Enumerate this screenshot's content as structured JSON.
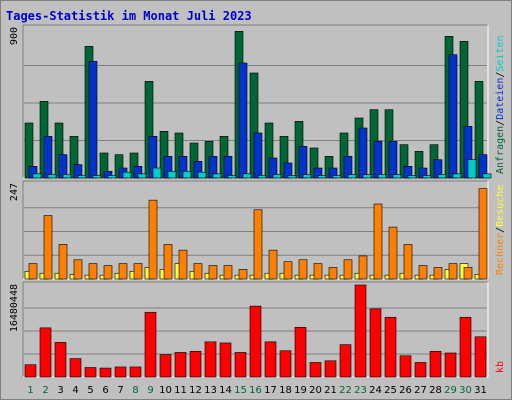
{
  "chart_data": {
    "type": "bar",
    "title": "Tages-Statistik im Monat Juli 2023",
    "categories": [
      "1",
      "2",
      "3",
      "4",
      "5",
      "6",
      "7",
      "8",
      "9",
      "10",
      "11",
      "12",
      "13",
      "14",
      "15",
      "16",
      "17",
      "18",
      "19",
      "20",
      "21",
      "22",
      "23",
      "24",
      "25",
      "26",
      "27",
      "28",
      "29",
      "30",
      "31"
    ],
    "weekend_days": [
      "1",
      "2",
      "8",
      "9",
      "15",
      "16",
      "22",
      "23",
      "29",
      "30"
    ],
    "colors": {
      "anfragen": "#006633",
      "dateien": "#0033cc",
      "seiten": "#00cccc",
      "besuche": "#ffff33",
      "rechner": "#ff8000",
      "kb": "#ff0000",
      "day_weekday": "#000000",
      "day_weekend": "#006633",
      "title": "#0000cc",
      "background": "#c0c0c0"
    },
    "panels": [
      {
        "id": "top",
        "ymax_label": "900",
        "ylim": [
          0,
          900
        ],
        "right_labels": [
          {
            "text": "Anfragen",
            "color": "#006633"
          },
          {
            "text": "Dateien",
            "color": "#0033cc"
          },
          {
            "text": "Seiten",
            "color": "#00cccc"
          }
        ],
        "series": [
          {
            "name": "Anfragen",
            "color": "#006633",
            "values": [
              330,
              460,
              330,
              250,
              790,
              150,
              140,
              150,
              580,
              280,
              270,
              210,
              220,
              250,
              880,
              630,
              330,
              250,
              340,
              180,
              130,
              270,
              360,
              410,
              410,
              200,
              160,
              200,
              850,
              820,
              580
            ]
          },
          {
            "name": "Dateien",
            "color": "#0033cc",
            "values": [
              70,
              250,
              140,
              80,
              700,
              40,
              60,
              70,
              250,
              130,
              130,
              100,
              130,
              130,
              690,
              270,
              120,
              90,
              190,
              60,
              60,
              130,
              300,
              220,
              220,
              70,
              60,
              110,
              740,
              310,
              140
            ]
          },
          {
            "name": "Seiten",
            "color": "#00cccc",
            "values": [
              25,
              20,
              20,
              15,
              15,
              15,
              35,
              25,
              60,
              40,
              40,
              35,
              25,
              15,
              25,
              15,
              20,
              15,
              20,
              15,
              15,
              20,
              20,
              20,
              20,
              15,
              15,
              20,
              25,
              110,
              25
            ]
          }
        ]
      },
      {
        "id": "middle",
        "ymax_label": "247",
        "ylim": [
          0,
          247
        ],
        "right_labels": [
          {
            "text": "Rechner",
            "color": "#ff8000"
          },
          {
            "text": "Besuche",
            "color": "#ffff33"
          }
        ],
        "series": [
          {
            "name": "Besuche",
            "color": "#ffff33",
            "values": [
              20,
              15,
              15,
              12,
              10,
              10,
              15,
              20,
              30,
              25,
              40,
              20,
              15,
              10,
              10,
              10,
              15,
              15,
              10,
              10,
              10,
              10,
              15,
              10,
              10,
              15,
              10,
              10,
              25,
              40,
              12
            ]
          },
          {
            "name": "Rechner",
            "color": "#ff8000",
            "values": [
              40,
              165,
              90,
              50,
              40,
              35,
              40,
              40,
              205,
              90,
              75,
              40,
              35,
              35,
              25,
              180,
              75,
              45,
              50,
              40,
              30,
              50,
              60,
              195,
              135,
              90,
              35,
              30,
              40,
              30,
              235
            ]
          }
        ]
      },
      {
        "id": "bottom",
        "ymax_label": "16480448",
        "ylim": [
          0,
          16480448
        ],
        "right_labels": [
          {
            "text": "kb",
            "color": "#ff0000"
          }
        ],
        "series": [
          {
            "name": "kb",
            "color": "#ff0000",
            "values": [
              2200000,
              8800000,
              6200000,
              3300000,
              1700000,
              1600000,
              1800000,
              1800000,
              11600000,
              4000000,
              4400000,
              4600000,
              6300000,
              6100000,
              4400000,
              12700000,
              6300000,
              4700000,
              8900000,
              2600000,
              2900000,
              5800000,
              16480448,
              12200000,
              10700000,
              3800000,
              2600000,
              4600000,
              4300000,
              10700000,
              7200000
            ]
          }
        ]
      }
    ]
  }
}
